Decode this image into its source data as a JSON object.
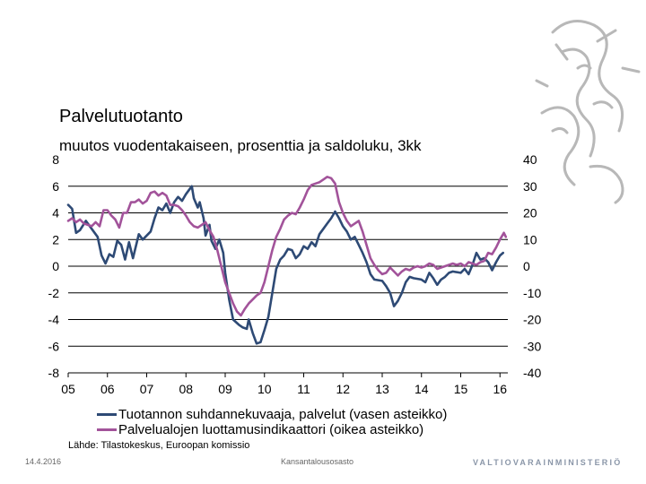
{
  "chart_data": {
    "type": "line",
    "title": "Palvelutuotanto",
    "subtitle": "muutos vuodentakaiseen, prosenttia ja saldoluku, 3kk",
    "source": "Lähde: Tilastokeskus, Euroopan komissio",
    "x_tick_labels": [
      "05",
      "06",
      "07",
      "08",
      "09",
      "10",
      "11",
      "12",
      "13",
      "14",
      "15",
      "16"
    ],
    "x_range": [
      2005.0,
      2016.2
    ],
    "left_axis": {
      "ylim": [
        -8,
        8
      ],
      "ticks": [
        "8",
        "6",
        "4",
        "2",
        "0",
        "-2",
        "-4",
        "-6",
        "-8"
      ]
    },
    "right_axis": {
      "ylim": [
        -40,
        40
      ],
      "ticks": [
        "40",
        "30",
        "20",
        "10",
        "0",
        "-10",
        "-20",
        "-30",
        "-40"
      ]
    },
    "gridlines": [
      6,
      4,
      2,
      0,
      -2,
      -4,
      -6
    ],
    "series": [
      {
        "name": "Tuotannon suhdannekuvaaja, palvelut (vasen asteikko)",
        "axis": "left",
        "color": "#2e4a75",
        "points": [
          [
            2005.0,
            4.6
          ],
          [
            2005.1,
            4.3
          ],
          [
            2005.2,
            2.5
          ],
          [
            2005.3,
            2.7
          ],
          [
            2005.45,
            3.4
          ],
          [
            2005.6,
            2.8
          ],
          [
            2005.75,
            2.2
          ],
          [
            2005.85,
            0.8
          ],
          [
            2005.95,
            0.2
          ],
          [
            2006.05,
            0.9
          ],
          [
            2006.15,
            0.7
          ],
          [
            2006.25,
            1.9
          ],
          [
            2006.35,
            1.6
          ],
          [
            2006.45,
            0.5
          ],
          [
            2006.55,
            1.8
          ],
          [
            2006.65,
            0.6
          ],
          [
            2006.8,
            2.4
          ],
          [
            2006.9,
            2.0
          ],
          [
            2007.0,
            2.3
          ],
          [
            2007.1,
            2.6
          ],
          [
            2007.2,
            3.6
          ],
          [
            2007.3,
            4.4
          ],
          [
            2007.4,
            4.2
          ],
          [
            2007.5,
            4.7
          ],
          [
            2007.6,
            4.0
          ],
          [
            2007.7,
            4.8
          ],
          [
            2007.8,
            5.2
          ],
          [
            2007.9,
            4.9
          ],
          [
            2008.0,
            5.4
          ],
          [
            2008.1,
            5.8
          ],
          [
            2008.15,
            6.0
          ],
          [
            2008.2,
            5.1
          ],
          [
            2008.3,
            4.4
          ],
          [
            2008.35,
            4.8
          ],
          [
            2008.45,
            3.6
          ],
          [
            2008.5,
            2.3
          ],
          [
            2008.6,
            3.1
          ],
          [
            2008.65,
            1.9
          ],
          [
            2008.75,
            1.3
          ],
          [
            2008.85,
            2.0
          ],
          [
            2008.95,
            1.0
          ],
          [
            2009.0,
            -0.5
          ],
          [
            2009.1,
            -2.5
          ],
          [
            2009.2,
            -4.0
          ],
          [
            2009.35,
            -4.4
          ],
          [
            2009.45,
            -4.6
          ],
          [
            2009.55,
            -4.7
          ],
          [
            2009.6,
            -4.0
          ],
          [
            2009.7,
            -5.0
          ],
          [
            2009.8,
            -5.8
          ],
          [
            2009.9,
            -5.7
          ],
          [
            2010.0,
            -4.8
          ],
          [
            2010.1,
            -3.8
          ],
          [
            2010.2,
            -2.0
          ],
          [
            2010.3,
            -0.2
          ],
          [
            2010.4,
            0.5
          ],
          [
            2010.5,
            0.8
          ],
          [
            2010.6,
            1.3
          ],
          [
            2010.7,
            1.2
          ],
          [
            2010.8,
            0.6
          ],
          [
            2010.9,
            0.9
          ],
          [
            2011.0,
            1.5
          ],
          [
            2011.1,
            1.3
          ],
          [
            2011.2,
            1.8
          ],
          [
            2011.3,
            1.5
          ],
          [
            2011.4,
            2.4
          ],
          [
            2011.5,
            2.8
          ],
          [
            2011.6,
            3.2
          ],
          [
            2011.7,
            3.6
          ],
          [
            2011.8,
            4.1
          ],
          [
            2011.9,
            3.6
          ],
          [
            2012.0,
            3.0
          ],
          [
            2012.1,
            2.6
          ],
          [
            2012.2,
            2.0
          ],
          [
            2012.3,
            2.2
          ],
          [
            2012.4,
            1.6
          ],
          [
            2012.5,
            1.0
          ],
          [
            2012.6,
            0.3
          ],
          [
            2012.7,
            -0.6
          ],
          [
            2012.8,
            -1.0
          ],
          [
            2013.0,
            -1.1
          ],
          [
            2013.1,
            -1.5
          ],
          [
            2013.2,
            -2.0
          ],
          [
            2013.3,
            -3.0
          ],
          [
            2013.4,
            -2.6
          ],
          [
            2013.5,
            -2.0
          ],
          [
            2013.6,
            -1.2
          ],
          [
            2013.7,
            -0.8
          ],
          [
            2013.8,
            -0.9
          ],
          [
            2014.0,
            -1.0
          ],
          [
            2014.1,
            -1.2
          ],
          [
            2014.2,
            -0.5
          ],
          [
            2014.3,
            -0.9
          ],
          [
            2014.4,
            -1.4
          ],
          [
            2014.5,
            -1.0
          ],
          [
            2014.6,
            -0.8
          ],
          [
            2014.7,
            -0.5
          ],
          [
            2014.8,
            -0.4
          ],
          [
            2015.0,
            -0.5
          ],
          [
            2015.1,
            -0.2
          ],
          [
            2015.2,
            -0.6
          ],
          [
            2015.3,
            0.1
          ],
          [
            2015.4,
            1.0
          ],
          [
            2015.5,
            0.5
          ],
          [
            2015.6,
            0.6
          ],
          [
            2015.7,
            0.3
          ],
          [
            2015.8,
            -0.3
          ],
          [
            2015.9,
            0.3
          ],
          [
            2016.0,
            0.8
          ],
          [
            2016.08,
            1.0
          ]
        ]
      },
      {
        "name": "Palvelualojen luottamusindikaattori (oikea asteikko)",
        "axis": "right",
        "color": "#a2539a",
        "points": [
          [
            2005.0,
            17.0
          ],
          [
            2005.1,
            18.0
          ],
          [
            2005.2,
            16.5
          ],
          [
            2005.3,
            17.5
          ],
          [
            2005.4,
            16.0
          ],
          [
            2005.5,
            15.5
          ],
          [
            2005.6,
            15.0
          ],
          [
            2005.7,
            16.5
          ],
          [
            2005.8,
            15.0
          ],
          [
            2005.9,
            21.0
          ],
          [
            2006.0,
            21.0
          ],
          [
            2006.1,
            19.0
          ],
          [
            2006.2,
            17.5
          ],
          [
            2006.3,
            14.5
          ],
          [
            2006.4,
            20.0
          ],
          [
            2006.5,
            20.0
          ],
          [
            2006.6,
            24.0
          ],
          [
            2006.7,
            24.0
          ],
          [
            2006.8,
            25.0
          ],
          [
            2006.9,
            23.5
          ],
          [
            2007.0,
            24.5
          ],
          [
            2007.1,
            27.5
          ],
          [
            2007.2,
            28.0
          ],
          [
            2007.3,
            26.5
          ],
          [
            2007.4,
            27.5
          ],
          [
            2007.5,
            26.5
          ],
          [
            2007.6,
            23.0
          ],
          [
            2007.7,
            23.0
          ],
          [
            2007.8,
            22.5
          ],
          [
            2007.9,
            21.0
          ],
          [
            2008.0,
            19.0
          ],
          [
            2008.1,
            16.5
          ],
          [
            2008.2,
            15.0
          ],
          [
            2008.3,
            14.5
          ],
          [
            2008.4,
            15.5
          ],
          [
            2008.5,
            16.5
          ],
          [
            2008.6,
            13.5
          ],
          [
            2008.7,
            11.0
          ],
          [
            2008.8,
            6.0
          ],
          [
            2008.9,
            0.0
          ],
          [
            2009.0,
            -6.0
          ],
          [
            2009.1,
            -10.0
          ],
          [
            2009.2,
            -14.0
          ],
          [
            2009.3,
            -17.0
          ],
          [
            2009.4,
            -18.5
          ],
          [
            2009.5,
            -16.0
          ],
          [
            2009.6,
            -14.0
          ],
          [
            2009.7,
            -12.5
          ],
          [
            2009.8,
            -11.0
          ],
          [
            2009.9,
            -10.0
          ],
          [
            2010.0,
            -6.0
          ],
          [
            2010.1,
            0.0
          ],
          [
            2010.2,
            6.0
          ],
          [
            2010.3,
            11.0
          ],
          [
            2010.4,
            14.0
          ],
          [
            2010.5,
            17.5
          ],
          [
            2010.6,
            19.0
          ],
          [
            2010.7,
            20.0
          ],
          [
            2010.8,
            19.5
          ],
          [
            2010.9,
            22.0
          ],
          [
            2011.0,
            25.0
          ],
          [
            2011.1,
            28.5
          ],
          [
            2011.2,
            30.5
          ],
          [
            2011.3,
            31.0
          ],
          [
            2011.4,
            31.5
          ],
          [
            2011.5,
            32.5
          ],
          [
            2011.6,
            33.5
          ],
          [
            2011.7,
            33.0
          ],
          [
            2011.8,
            31.0
          ],
          [
            2011.9,
            24.0
          ],
          [
            2012.0,
            20.0
          ],
          [
            2012.1,
            17.0
          ],
          [
            2012.2,
            15.0
          ],
          [
            2012.3,
            16.0
          ],
          [
            2012.4,
            17.0
          ],
          [
            2012.5,
            13.0
          ],
          [
            2012.6,
            8.0
          ],
          [
            2012.7,
            3.0
          ],
          [
            2012.8,
            0.5
          ],
          [
            2012.9,
            -1.5
          ],
          [
            2013.0,
            -3.0
          ],
          [
            2013.1,
            -2.5
          ],
          [
            2013.2,
            -0.5
          ],
          [
            2013.3,
            -2.0
          ],
          [
            2013.4,
            -3.5
          ],
          [
            2013.5,
            -2.0
          ],
          [
            2013.6,
            -1.0
          ],
          [
            2013.7,
            -1.5
          ],
          [
            2013.8,
            -0.5
          ],
          [
            2013.9,
            0.0
          ],
          [
            2014.0,
            -0.5
          ],
          [
            2014.1,
            0.0
          ],
          [
            2014.2,
            1.0
          ],
          [
            2014.3,
            0.5
          ],
          [
            2014.4,
            -1.0
          ],
          [
            2014.5,
            -0.5
          ],
          [
            2014.6,
            0.0
          ],
          [
            2014.7,
            0.5
          ],
          [
            2014.8,
            1.0
          ],
          [
            2014.9,
            0.5
          ],
          [
            2015.0,
            1.0
          ],
          [
            2015.1,
            0.0
          ],
          [
            2015.2,
            1.5
          ],
          [
            2015.3,
            1.0
          ],
          [
            2015.4,
            0.5
          ],
          [
            2015.5,
            1.5
          ],
          [
            2015.6,
            2.0
          ],
          [
            2015.7,
            5.0
          ],
          [
            2015.8,
            4.5
          ],
          [
            2015.9,
            7.0
          ],
          [
            2016.0,
            10.0
          ],
          [
            2016.1,
            12.5
          ],
          [
            2016.15,
            11.0
          ]
        ]
      }
    ]
  },
  "footer": {
    "date": "14.4.2016",
    "organization": "Kansantalousosasto",
    "ministry": "VALTIOVARAINMINISTERIÖ"
  }
}
